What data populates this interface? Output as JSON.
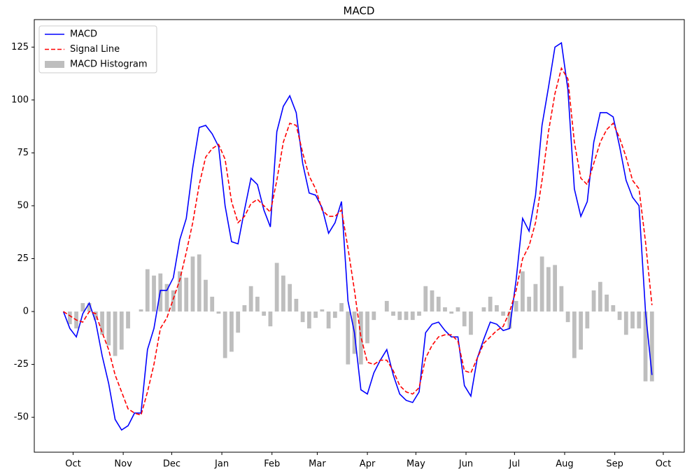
{
  "chart_data": {
    "type": "line",
    "title": "MACD",
    "x": [
      -6,
      -2,
      2,
      6,
      10,
      14,
      18,
      22,
      26,
      30,
      34,
      38,
      42,
      46,
      50,
      54,
      58,
      62,
      66,
      70,
      74,
      78,
      82,
      86,
      90,
      94,
      98,
      102,
      106,
      110,
      114,
      118,
      122,
      126,
      130,
      134,
      138,
      142,
      146,
      150,
      154,
      158,
      162,
      166,
      170,
      174,
      178,
      182,
      186,
      190,
      194,
      198,
      202,
      206,
      210,
      214,
      218,
      222,
      226,
      230,
      234,
      238,
      242,
      246,
      250,
      254,
      258,
      262,
      266,
      270,
      274,
      278,
      282,
      286,
      290,
      294,
      298,
      302,
      306,
      310,
      314,
      318,
      322,
      326,
      330,
      334,
      338,
      342,
      346,
      350,
      354,
      358
    ],
    "series": [
      {
        "name": "MACD",
        "color": "#0000ff",
        "kind": "line",
        "values": [
          0,
          -8,
          -12,
          -1,
          4,
          -5,
          -21,
          -34,
          -51,
          -56,
          -54,
          -48,
          -48,
          -18,
          -8,
          10,
          10,
          16,
          34,
          44,
          68,
          87,
          88,
          84,
          78,
          50,
          33,
          32,
          48,
          63,
          60,
          48,
          40,
          85,
          97,
          102,
          94,
          70,
          56,
          55,
          49,
          37,
          42,
          52,
          5,
          -10,
          -37,
          -39,
          -29,
          -23,
          -18,
          -30,
          -39,
          -42,
          -43,
          -38,
          -10,
          -6,
          -5,
          -9,
          -12,
          -12,
          -35,
          -40,
          -22,
          -13,
          -5,
          -6,
          -9,
          -8,
          15,
          44,
          38,
          55,
          88,
          106,
          125,
          127,
          105,
          58,
          45,
          52,
          80,
          94,
          94,
          92,
          78,
          62,
          54,
          50,
          0,
          -30
        ]
      },
      {
        "name": "Signal Line",
        "color": "#ff0000",
        "kind": "line",
        "dashed": true,
        "values": [
          0,
          -2,
          -4,
          -5,
          0,
          -1,
          -10,
          -18,
          -30,
          -38,
          -46,
          -48,
          -49,
          -38,
          -25,
          -8,
          -3,
          6,
          15,
          28,
          42,
          60,
          73,
          77,
          79,
          72,
          52,
          42,
          45,
          51,
          53,
          50,
          47,
          62,
          80,
          89,
          88,
          75,
          64,
          58,
          48,
          45,
          45,
          48,
          30,
          10,
          -12,
          -24,
          -25,
          -23,
          -23,
          -28,
          -35,
          -38,
          -39,
          -36,
          -22,
          -16,
          -12,
          -11,
          -11,
          -14,
          -28,
          -29,
          -22,
          -15,
          -12,
          -9,
          -7,
          0,
          10,
          25,
          31,
          42,
          62,
          85,
          103,
          115,
          110,
          80,
          63,
          60,
          70,
          80,
          86,
          89,
          82,
          73,
          62,
          58,
          33,
          3
        ]
      },
      {
        "name": "MACD Histogram",
        "color": "#bebebe",
        "kind": "bar",
        "values": [
          0,
          -6,
          -8,
          4,
          4,
          -4,
          -11,
          -16,
          -21,
          -18,
          -8,
          0,
          1,
          20,
          17,
          18,
          13,
          10,
          19,
          16,
          26,
          27,
          15,
          7,
          -1,
          -22,
          -19,
          -10,
          3,
          12,
          7,
          -2,
          -7,
          23,
          17,
          13,
          6,
          -5,
          -8,
          -3,
          1,
          -8,
          -3,
          4,
          -25,
          -20,
          -25,
          -15,
          -4,
          0,
          5,
          -2,
          -4,
          -4,
          -4,
          -2,
          12,
          10,
          7,
          2,
          -1,
          2,
          -7,
          -11,
          0,
          2,
          7,
          3,
          -2,
          -8,
          5,
          19,
          7,
          13,
          26,
          21,
          22,
          12,
          -5,
          -22,
          -18,
          -8,
          10,
          14,
          8,
          3,
          -4,
          -11,
          -8,
          -8,
          -33,
          -33
        ]
      }
    ],
    "xlim": [
      -24,
      378
    ],
    "ylim": [
      -66.5,
      138
    ],
    "xticks": [
      {
        "value": 0,
        "label": "Oct"
      },
      {
        "value": 31,
        "label": "Nov"
      },
      {
        "value": 61,
        "label": "Dec"
      },
      {
        "value": 92,
        "label": "Jan"
      },
      {
        "value": 123,
        "label": "Feb"
      },
      {
        "value": 151,
        "label": "Mar"
      },
      {
        "value": 182,
        "label": "Apr"
      },
      {
        "value": 212,
        "label": "May"
      },
      {
        "value": 243,
        "label": "Jun"
      },
      {
        "value": 273,
        "label": "Jul"
      },
      {
        "value": 304,
        "label": "Aug"
      },
      {
        "value": 335,
        "label": "Sep"
      },
      {
        "value": 365,
        "label": "Oct"
      }
    ],
    "yticks": [
      -50,
      -25,
      0,
      25,
      50,
      75,
      100,
      125
    ],
    "legend": "upper left"
  }
}
